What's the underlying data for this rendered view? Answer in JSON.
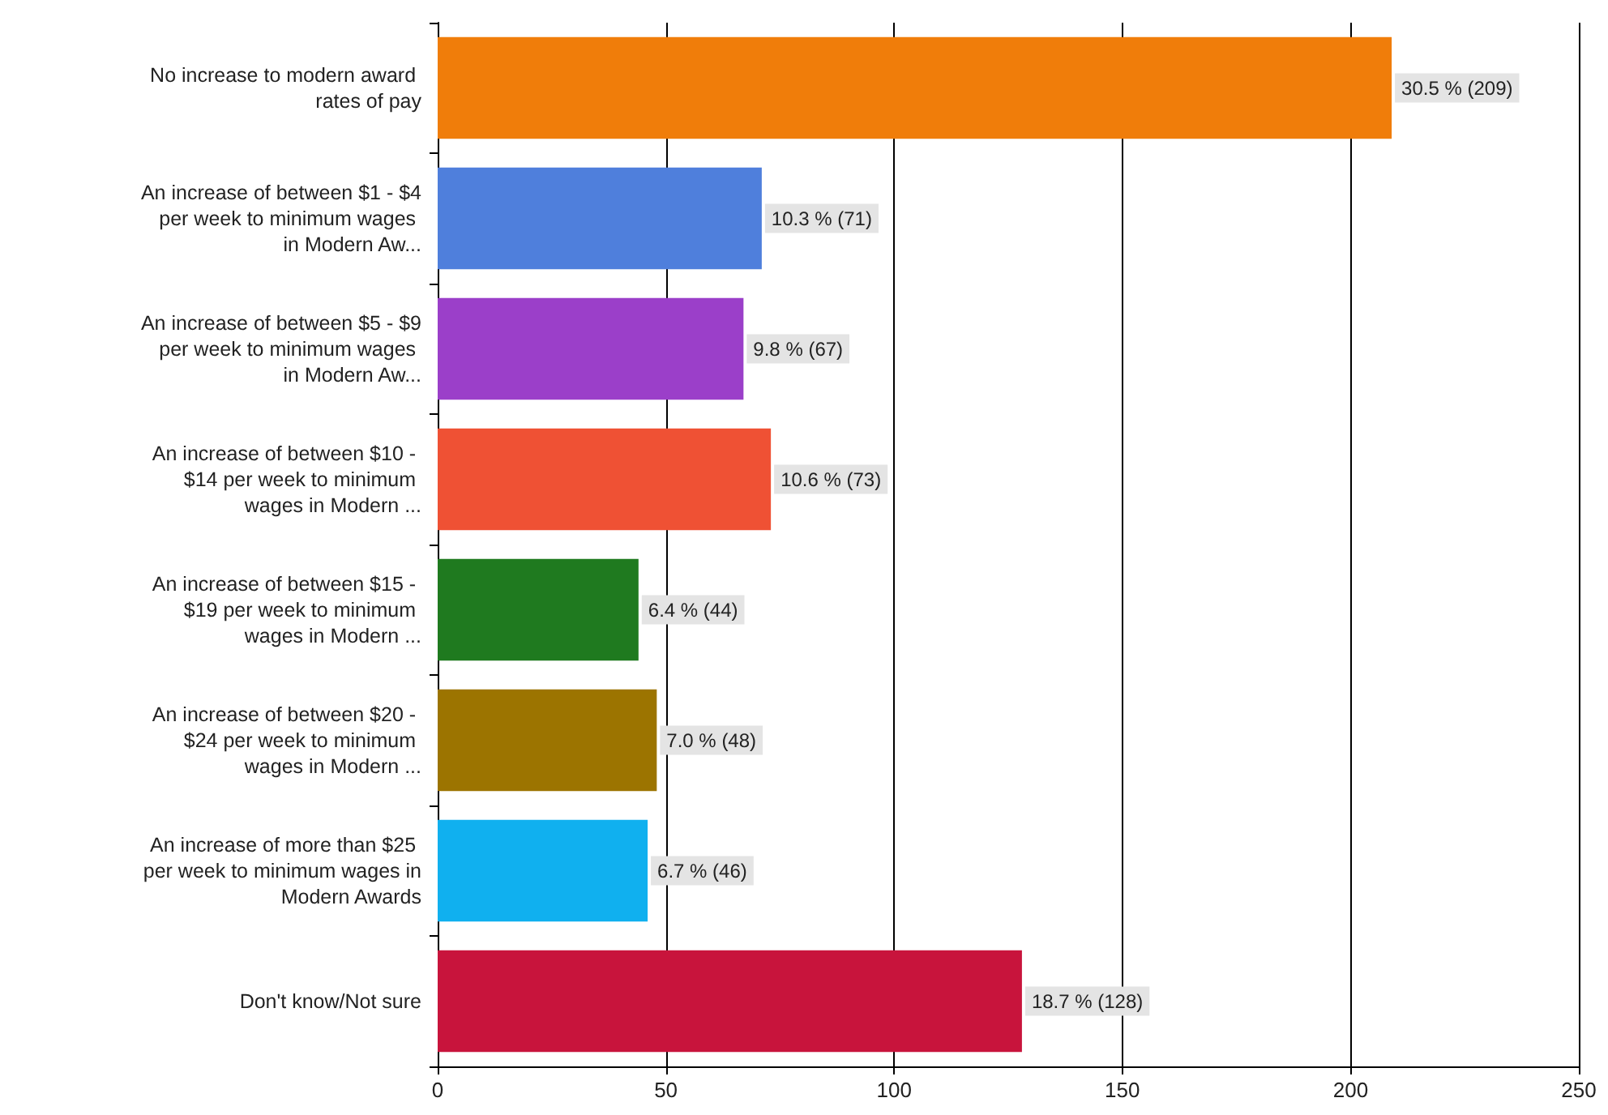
{
  "chart_data": {
    "type": "bar",
    "orientation": "horizontal",
    "categories": [
      "No increase to modern award rates of pay",
      "An increase of between $1 - $4 per week to minimum wages in Modern Aw...",
      "An increase of between $5 - $9 per week to minimum wages in Modern Aw...",
      "An increase of between $10 - $14 per week to minimum wages in Modern ...",
      "An increase of between $15 - $19 per week to minimum wages in Modern ...",
      "An increase of between $20 - $24 per week to minimum wages in Modern ...",
      "An increase of more than $25 per week to minimum wages in Modern Awards",
      "Don't know/Not sure"
    ],
    "values": [
      209,
      71,
      67,
      73,
      44,
      48,
      46,
      128
    ],
    "colors": [
      "#f07d0a",
      "#4f7fdc",
      "#9b3fc9",
      "#ef5134",
      "#1f7a1f",
      "#9c7400",
      "#10b0ef",
      "#c8143c"
    ],
    "value_labels": [
      "30.5 % (209)",
      "10.3 % (71)",
      "9.8 % (67)",
      "10.6 % (73)",
      "6.4 % (44)",
      "7.0 % (48)",
      "6.7 % (46)",
      "18.7 % (128)"
    ],
    "xlim": [
      0,
      250
    ],
    "xticks": [
      0,
      50,
      100,
      150,
      200,
      250
    ],
    "grid": "x"
  }
}
